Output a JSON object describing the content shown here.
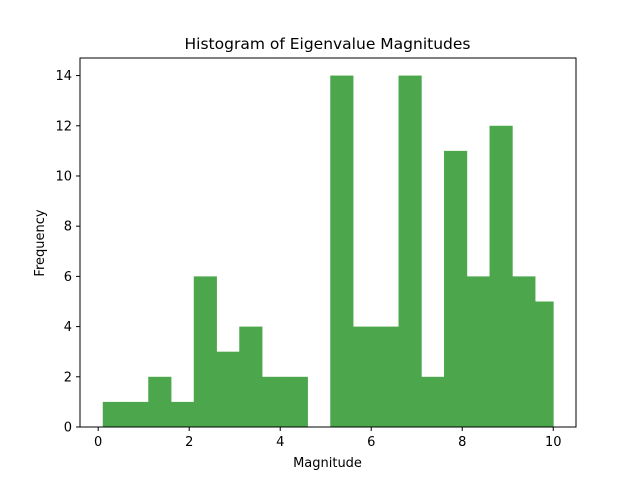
{
  "chart_data": {
    "type": "bar",
    "title": "Histogram of Eigenvalue Magnitudes",
    "xlabel": "Magnitude",
    "ylabel": "Frequency",
    "xlim": [
      -0.4,
      10.5
    ],
    "ylim": [
      0,
      14.7
    ],
    "xticks": [
      0,
      2,
      4,
      6,
      8,
      10
    ],
    "yticks": [
      0,
      2,
      4,
      6,
      8,
      10,
      12,
      14
    ],
    "bin_edges": [
      0.1,
      0.6,
      1.1,
      1.6,
      2.1,
      2.6,
      3.1,
      3.6,
      4.1,
      4.6,
      5.1,
      5.6,
      6.1,
      6.6,
      7.1,
      7.6,
      8.1,
      8.6,
      9.1,
      9.6,
      10.0
    ],
    "values": [
      1,
      1,
      2,
      1,
      6,
      3,
      4,
      2,
      2,
      0,
      14,
      4,
      4,
      14,
      2,
      11,
      6,
      12,
      6,
      5
    ],
    "bar_color": "#4ca64c",
    "grid": false,
    "legend": "none"
  }
}
